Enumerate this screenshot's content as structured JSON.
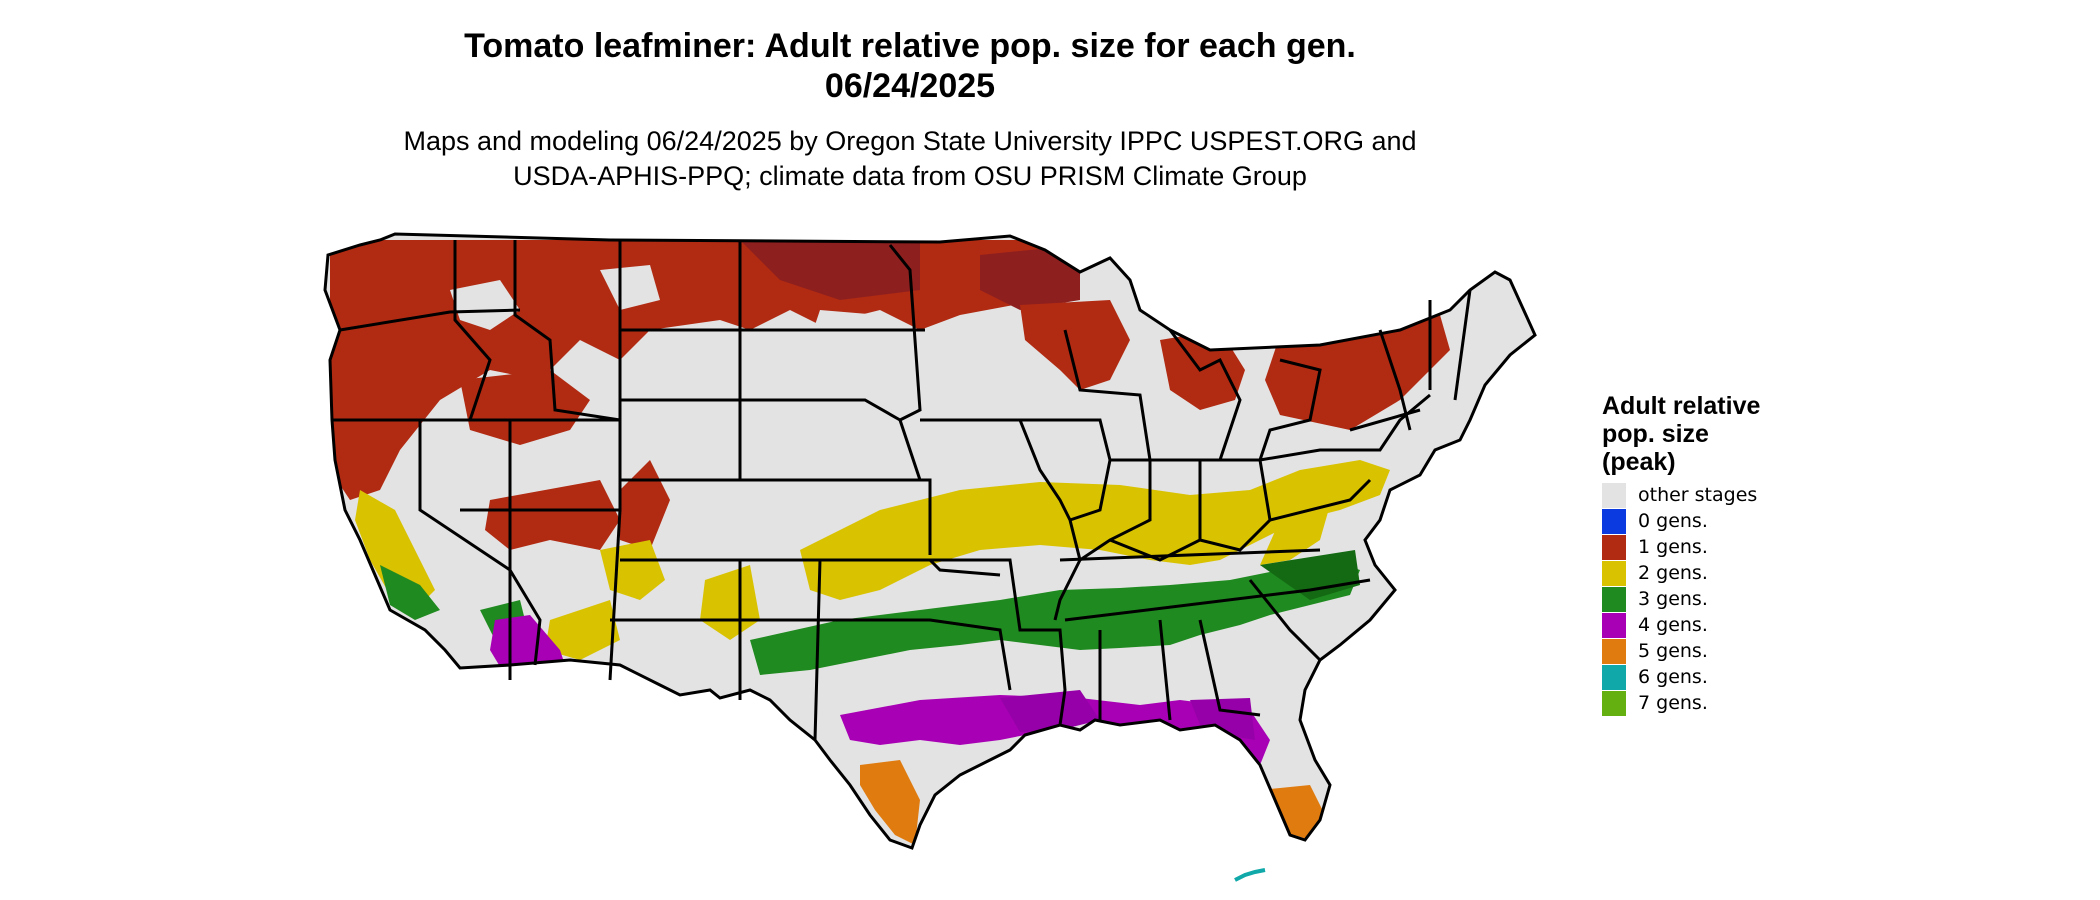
{
  "title": {
    "line1": "Tomato leafminer: Adult relative pop. size for each gen.",
    "line2": "06/24/2025"
  },
  "subtitle": {
    "line1": "Maps and modeling 06/24/2025 by Oregon State University IPPC USPEST.ORG and",
    "line2": "USDA-APHIS-PPQ; climate data from OSU PRISM Climate Group"
  },
  "legend": {
    "title_lines": [
      "Adult relative",
      "pop. size",
      "(peak)"
    ],
    "items": [
      {
        "label": "other stages",
        "color": "#e3e3e3"
      },
      {
        "label": "0 gens.",
        "color": "#0b3ae0"
      },
      {
        "label": "1 gens.",
        "color": "#b12a12"
      },
      {
        "label": "2 gens.",
        "color": "#d9c200"
      },
      {
        "label": "3 gens.",
        "color": "#1f8a1f"
      },
      {
        "label": "4 gens.",
        "color": "#a800b4"
      },
      {
        "label": "5 gens.",
        "color": "#e07b10"
      },
      {
        "label": "6 gens.",
        "color": "#10a8a8"
      },
      {
        "label": "7 gens.",
        "color": "#63b010"
      }
    ]
  },
  "map": {
    "region": "contiguous-us",
    "base_color": "#e3e3e3",
    "border_color": "#000000",
    "zones": [
      {
        "generations": "1 gens.",
        "color": "#b12a12",
        "area": "northern tier and mountain west"
      },
      {
        "generations": "2 gens.",
        "color": "#d9c200",
        "area": "central plains to mid-atlantic"
      },
      {
        "generations": "3 gens.",
        "color": "#1f8a1f",
        "area": "lower south to carolinas"
      },
      {
        "generations": "4 gens.",
        "color": "#a800b4",
        "area": "gulf coast and desert southwest"
      },
      {
        "generations": "5 gens.",
        "color": "#e07b10",
        "area": "south texas and south florida"
      },
      {
        "generations": "6 gens.",
        "color": "#10a8a8",
        "area": "florida keys"
      }
    ]
  }
}
